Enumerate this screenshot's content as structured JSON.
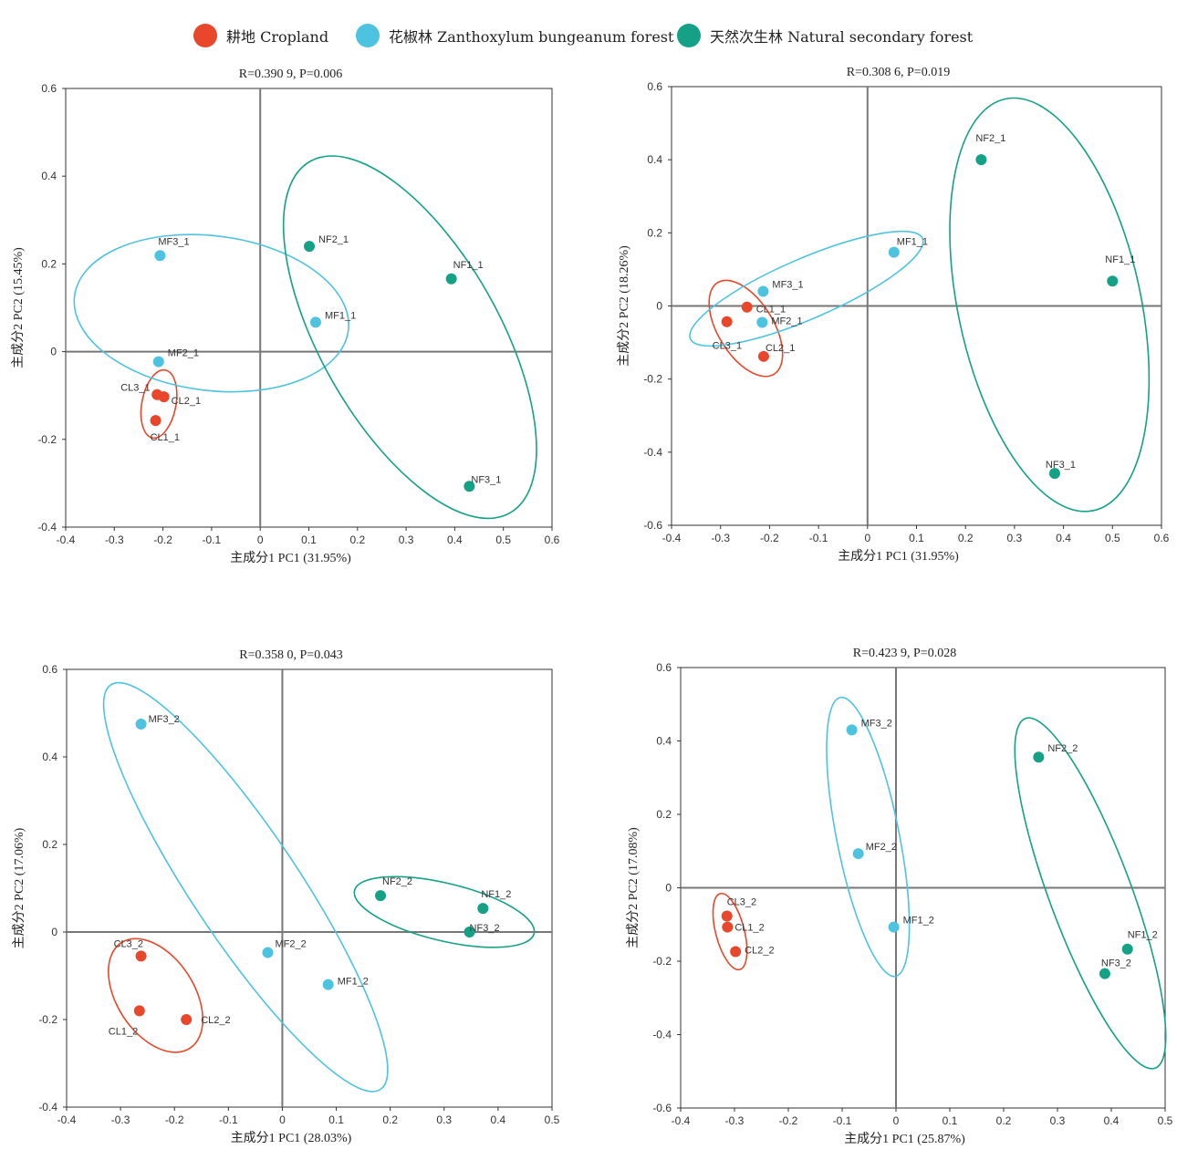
{
  "legend": {
    "items": [
      {
        "label": "耕地 Cropland",
        "color": "#e8472b"
      },
      {
        "label": "花椒林 Zanthoxylum bungeanum forest",
        "color": "#4ec3e0"
      },
      {
        "label": "天然次生林 Natural secondary forest",
        "color": "#14a185"
      }
    ]
  },
  "chart_data": [
    {
      "type": "scatter",
      "title": "R=0.390 9, P=0.006",
      "xlabel": "主成分1 PC1 (31.95%)",
      "ylabel": "主成分2 PC2 (15.45%)",
      "xlim": [
        -0.4,
        0.6
      ],
      "ylim": [
        -0.4,
        0.6
      ],
      "xticks": [
        "-0.4",
        "-0.3",
        "-0.2",
        "-0.1",
        "0",
        "0.1",
        "0.2",
        "0.3",
        "0.4",
        "0.5",
        "0.6"
      ],
      "yticks": [
        "-0.4",
        "-0.2",
        "0",
        "0.2",
        "0.4",
        "0.6"
      ],
      "points": [
        {
          "label": "CL1_1",
          "x": -0.215,
          "y": -0.157,
          "group": 0
        },
        {
          "label": "CL2_1",
          "x": -0.198,
          "y": -0.103,
          "group": 0
        },
        {
          "label": "CL3_1",
          "x": -0.212,
          "y": -0.098,
          "group": 0
        },
        {
          "label": "MF1_1",
          "x": 0.114,
          "y": 0.067,
          "group": 1
        },
        {
          "label": "MF2_1",
          "x": -0.209,
          "y": -0.023,
          "group": 1
        },
        {
          "label": "MF3_1",
          "x": -0.206,
          "y": 0.219,
          "group": 1
        },
        {
          "label": "NF1_1",
          "x": 0.393,
          "y": 0.166,
          "group": 2
        },
        {
          "label": "NF2_1",
          "x": 0.101,
          "y": 0.24,
          "group": 2
        },
        {
          "label": "NF3_1",
          "x": 0.43,
          "y": -0.307,
          "group": 2
        }
      ]
    },
    {
      "type": "scatter",
      "title": "R=0.308 6, P=0.019",
      "xlabel": "主成分1 PC1 (31.95%)",
      "ylabel": "主成分2 PC2 (18.26%)",
      "xlim": [
        -0.4,
        0.6
      ],
      "ylim": [
        -0.6,
        0.6
      ],
      "xticks": [
        "-0.4",
        "-0.3",
        "-0.2",
        "-0.1",
        "0",
        "0.1",
        "0.2",
        "0.3",
        "0.4",
        "0.5",
        "0.6"
      ],
      "yticks": [
        "-0.6",
        "-0.4",
        "-0.2",
        "0",
        "0.2",
        "0.4",
        "0.6"
      ],
      "points": [
        {
          "label": "CL1_1",
          "x": -0.246,
          "y": -0.003,
          "group": 0
        },
        {
          "label": "CL2_1",
          "x": -0.212,
          "y": -0.138,
          "group": 0
        },
        {
          "label": "CL3_1",
          "x": -0.287,
          "y": -0.043,
          "group": 0
        },
        {
          "label": "MF1_1",
          "x": 0.054,
          "y": 0.147,
          "group": 1
        },
        {
          "label": "MF2_1",
          "x": -0.215,
          "y": -0.045,
          "group": 1
        },
        {
          "label": "MF3_1",
          "x": -0.213,
          "y": 0.04,
          "group": 1
        },
        {
          "label": "NF1_1",
          "x": 0.5,
          "y": 0.068,
          "group": 2
        },
        {
          "label": "NF2_1",
          "x": 0.232,
          "y": 0.4,
          "group": 2
        },
        {
          "label": "NF3_1",
          "x": 0.382,
          "y": -0.458,
          "group": 2
        }
      ]
    },
    {
      "type": "scatter",
      "title": "R=0.358 0, P=0.043",
      "xlabel": "主成分1 PC1 (28.03%)",
      "ylabel": "主成分2 PC2 (17.06%)",
      "xlim": [
        -0.4,
        0.5
      ],
      "ylim": [
        -0.4,
        0.6
      ],
      "xticks": [
        "-0.4",
        "-0.3",
        "-0.2",
        "-0.1",
        "0",
        "0.1",
        "0.2",
        "0.3",
        "0.4",
        "0.5"
      ],
      "yticks": [
        "-0.4",
        "-0.2",
        "0",
        "0.2",
        "0.4",
        "0.6"
      ],
      "points": [
        {
          "label": "CL1_2",
          "x": -0.265,
          "y": -0.18,
          "group": 0
        },
        {
          "label": "CL2_2",
          "x": -0.178,
          "y": -0.2,
          "group": 0
        },
        {
          "label": "CL3_2",
          "x": -0.262,
          "y": -0.055,
          "group": 0
        },
        {
          "label": "MF1_2",
          "x": 0.085,
          "y": -0.12,
          "group": 1
        },
        {
          "label": "MF2_2",
          "x": -0.027,
          "y": -0.047,
          "group": 1
        },
        {
          "label": "MF3_2",
          "x": -0.262,
          "y": 0.475,
          "group": 1
        },
        {
          "label": "NF1_2",
          "x": 0.372,
          "y": 0.054,
          "group": 2
        },
        {
          "label": "NF2_2",
          "x": 0.182,
          "y": 0.083,
          "group": 2
        },
        {
          "label": "NF3_2",
          "x": 0.347,
          "y": 0.0,
          "group": 2
        }
      ]
    },
    {
      "type": "scatter",
      "title": "R=0.423 9, P=0.028",
      "xlabel": "主成分1 PC1 (25.87%)",
      "ylabel": "主成分2 PC2 (17.08%)",
      "xlim": [
        -0.4,
        0.5
      ],
      "ylim": [
        -0.6,
        0.6
      ],
      "xticks": [
        "-0.4",
        "-0.3",
        "-0.2",
        "-0.1",
        "0",
        "0.1",
        "0.2",
        "0.3",
        "0.4",
        "0.5"
      ],
      "yticks": [
        "-0.6",
        "-0.4",
        "-0.2",
        "0",
        "0.2",
        "0.4",
        "0.6"
      ],
      "points": [
        {
          "label": "CL1_2",
          "x": -0.313,
          "y": -0.107,
          "group": 0
        },
        {
          "label": "CL2_2",
          "x": -0.298,
          "y": -0.174,
          "group": 0
        },
        {
          "label": "CL3_2",
          "x": -0.314,
          "y": -0.077,
          "group": 0
        },
        {
          "label": "MF1_2",
          "x": -0.004,
          "y": -0.107,
          "group": 1
        },
        {
          "label": "MF2_2",
          "x": -0.07,
          "y": 0.093,
          "group": 1
        },
        {
          "label": "MF3_2",
          "x": -0.082,
          "y": 0.43,
          "group": 1
        },
        {
          "label": "NF1_2",
          "x": 0.43,
          "y": -0.167,
          "group": 2
        },
        {
          "label": "NF2_2",
          "x": 0.265,
          "y": 0.356,
          "group": 2
        },
        {
          "label": "NF3_2",
          "x": 0.388,
          "y": -0.234,
          "group": 2
        }
      ]
    }
  ]
}
